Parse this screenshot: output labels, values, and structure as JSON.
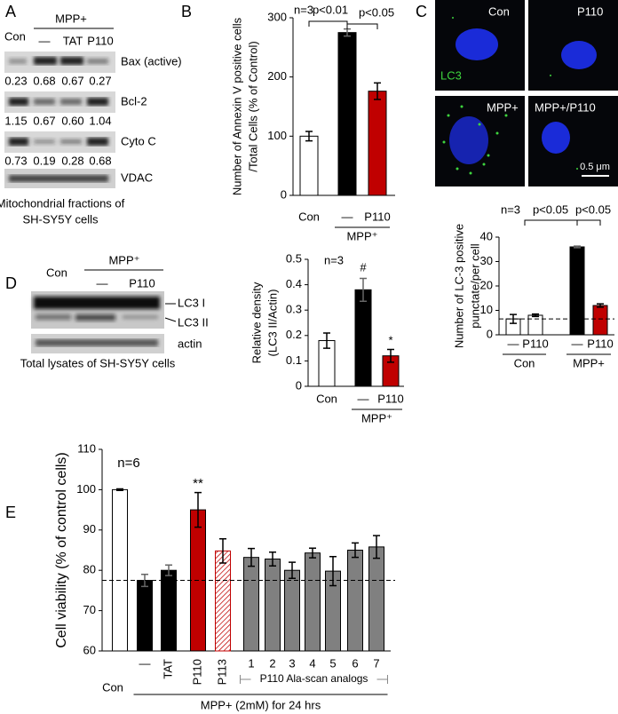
{
  "panel_labels": [
    "A",
    "B",
    "C",
    "D",
    "E"
  ],
  "blot_a": {
    "con": "Con",
    "treatment": "MPP+",
    "lanes": [
      "—",
      "TAT",
      "P110"
    ],
    "rows": [
      {
        "label": "Bax (active)",
        "values": [
          "0.23",
          "0.68",
          "0.67",
          "0.27"
        ]
      },
      {
        "label": "Bcl-2",
        "values": [
          "1.15",
          "0.67",
          "0.60",
          "1.04"
        ]
      },
      {
        "label": "Cyto C",
        "values": [
          "0.73",
          "0.19",
          "0.28",
          "0.68"
        ]
      },
      {
        "label": "VDAC"
      }
    ],
    "caption": [
      "Mitochondrial fractions of",
      "SH-SY5Y cells"
    ]
  },
  "images_c": {
    "labels": [
      "Con",
      "P110",
      "MPP+",
      "MPP+/P110"
    ],
    "stain": "LC3",
    "scale": "0.5 μm"
  },
  "blot_d": {
    "con": "Con",
    "treatment": "MPP⁺",
    "lanes": [
      "—",
      "P110"
    ],
    "bands": [
      "LC3 I",
      "LC3 II",
      "actin"
    ],
    "caption": "Total lysates of SH-SY5Y cells"
  },
  "chart_data": [
    {
      "type": "bar",
      "categories": [
        "Con",
        "—",
        "P110"
      ],
      "values": [
        100,
        275,
        176
      ],
      "errors": [
        8,
        6,
        14
      ],
      "colors": [
        "#ffffff",
        "#000000",
        "#c00000"
      ],
      "ylim": [
        0,
        300
      ],
      "yticks": [
        0,
        100,
        200,
        300
      ],
      "ylabel": [
        "Number of Annexin V positive cells",
        "/Total Cells (% of Control)"
      ],
      "groups": [
        {
          "label": "MPP⁺",
          "span": [
            1,
            2
          ]
        }
      ],
      "annotations": [
        "n=3",
        "p<0.01",
        "p<0.05"
      ]
    },
    {
      "type": "bar",
      "categories": [
        "—",
        "P110",
        "—",
        "P110"
      ],
      "values": [
        6.5,
        8,
        36,
        12
      ],
      "errors": [
        1.8,
        0.5,
        0.3,
        0.7
      ],
      "colors": [
        "#ffffff",
        "#ffffff",
        "#000000",
        "#c00000"
      ],
      "ylim": [
        0,
        40
      ],
      "yticks": [
        0,
        10,
        20,
        30,
        40
      ],
      "ylabel": [
        "Number of LC-3 positive",
        "punctate/per cell"
      ],
      "hline": 6.5,
      "groups": [
        {
          "label": "Con",
          "span": [
            0,
            1
          ]
        },
        {
          "label": "MPP+",
          "span": [
            2,
            3
          ]
        }
      ],
      "annotations": [
        "n=3",
        "p<0.05",
        "p<0.05"
      ]
    },
    {
      "type": "bar",
      "categories": [
        "Con",
        "—",
        "P110"
      ],
      "values": [
        0.18,
        0.38,
        0.12
      ],
      "errors": [
        0.03,
        0.045,
        0.025
      ],
      "colors": [
        "#ffffff",
        "#000000",
        "#c00000"
      ],
      "ylim": [
        0,
        0.5
      ],
      "yticks": [
        0,
        0.1,
        0.2,
        0.3,
        0.4,
        0.5
      ],
      "ylabel": [
        "Relative density",
        "(LC3 II/Actin)"
      ],
      "groups": [
        {
          "label": "MPP⁺",
          "span": [
            1,
            2
          ]
        }
      ],
      "annotations": [
        "n=3",
        "#",
        "*"
      ]
    },
    {
      "type": "bar",
      "categories": [
        "Con",
        "—",
        "TAT",
        "P110",
        "P113",
        "1",
        "2",
        "3",
        "4",
        "5",
        "6",
        "7"
      ],
      "values": [
        100,
        77.5,
        80,
        95,
        84.8,
        83.2,
        82.8,
        80,
        84.3,
        79.8,
        85,
        85.8
      ],
      "errors": [
        0.2,
        1.5,
        1.3,
        4.3,
        3,
        2.2,
        1.7,
        2,
        1.2,
        3.6,
        1.8,
        2.8
      ],
      "colors": [
        "#ffffff",
        "#000000",
        "#000000",
        "#c00000",
        "#c00000",
        "#808080",
        "#808080",
        "#808080",
        "#808080",
        "#808080",
        "#808080",
        "#808080"
      ],
      "hatched": [
        false,
        false,
        false,
        false,
        true,
        false,
        false,
        false,
        false,
        false,
        false,
        false
      ],
      "ylim": [
        60,
        110
      ],
      "yticks": [
        60,
        70,
        80,
        90,
        100,
        110
      ],
      "hline": 77.5,
      "ylabel": [
        "Cell viability (% of control cells)"
      ],
      "groups": [
        {
          "label": "P110 Ala-scan analogs",
          "span": [
            5,
            11
          ]
        },
        {
          "label": "MPP+ (2mM) for 24 hrs",
          "span": [
            1,
            11
          ]
        }
      ],
      "annotations": [
        "n=6",
        "**"
      ]
    }
  ]
}
